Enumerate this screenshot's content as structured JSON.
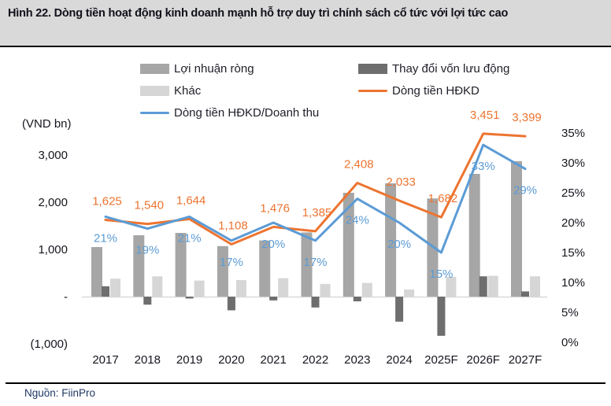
{
  "header": {
    "title": "Hình 22. Dòng tiền hoạt động kinh doanh mạnh hỗ trợ duy trì chính sách cổ tức với lợi tức cao"
  },
  "source": {
    "label": "Nguồn: FiinPro"
  },
  "chart_data": {
    "type": "combo-bar-line",
    "axis_left_label": "(VND bn)",
    "categories": [
      "2017",
      "2018",
      "2019",
      "2020",
      "2021",
      "2022",
      "2023",
      "2024",
      "2025F",
      "2026F",
      "2027F"
    ],
    "series": [
      {
        "name": "Lợi nhuận ròng",
        "type": "bar",
        "axis": "left",
        "color": "#A6A6A6",
        "values": [
          1050,
          1300,
          1350,
          1070,
          1190,
          1360,
          2200,
          2400,
          2080,
          2600,
          2870
        ]
      },
      {
        "name": "Thay đổi vốn lưu động",
        "type": "bar",
        "axis": "left",
        "color": "#6E6E6E",
        "values": [
          220,
          -170,
          -40,
          -290,
          -80,
          -230,
          -100,
          -530,
          -830,
          430,
          110
        ]
      },
      {
        "name": "Khác",
        "type": "bar",
        "axis": "left",
        "color": "#D6D6D6",
        "values": [
          380,
          430,
          340,
          350,
          390,
          270,
          290,
          150,
          420,
          440,
          430
        ]
      },
      {
        "name": "Dòng tiền HĐKD",
        "type": "line",
        "axis": "left",
        "color": "#ED7430",
        "values": [
          1625,
          1540,
          1644,
          1108,
          1476,
          1385,
          2408,
          2033,
          1682,
          3451,
          3399
        ],
        "labels": [
          "1,625",
          "1,540",
          "1,644",
          "1,108",
          "1,476",
          "1,385",
          "2,408",
          "2,033",
          "1,682",
          "3,451",
          "3,399"
        ]
      },
      {
        "name": "Dòng tiền HĐKD/Doanh thu",
        "type": "line",
        "axis": "right",
        "color": "#5B9BD5",
        "values": [
          21,
          19,
          21,
          17,
          20,
          17,
          24,
          20,
          15,
          33,
          29
        ],
        "labels": [
          "21%",
          "19%",
          "21%",
          "17%",
          "20%",
          "17%",
          "24%",
          "20%",
          "15%",
          "33%",
          "29%"
        ]
      }
    ],
    "axis_left_ticks": [
      {
        "label": "3,000",
        "value": 3000
      },
      {
        "label": "2,000",
        "value": 2000
      },
      {
        "label": "1,000",
        "value": 1000
      },
      {
        "label": "-",
        "value": 0
      },
      {
        "label": "(1,000)",
        "value": -1000
      }
    ],
    "axis_right_ticks": [
      {
        "label": "35%",
        "value": 35
      },
      {
        "label": "30%",
        "value": 30
      },
      {
        "label": "25%",
        "value": 25
      },
      {
        "label": "20%",
        "value": 20
      },
      {
        "label": "15%",
        "value": 15
      },
      {
        "label": "10%",
        "value": 10
      },
      {
        "label": "5%",
        "value": 5
      },
      {
        "label": "0%",
        "value": 0
      }
    ],
    "axis_left_range": [
      -1000,
      3000
    ],
    "axis_right_range": [
      0,
      35
    ],
    "grid": "zero-baseline-only",
    "legend_position": "top"
  }
}
